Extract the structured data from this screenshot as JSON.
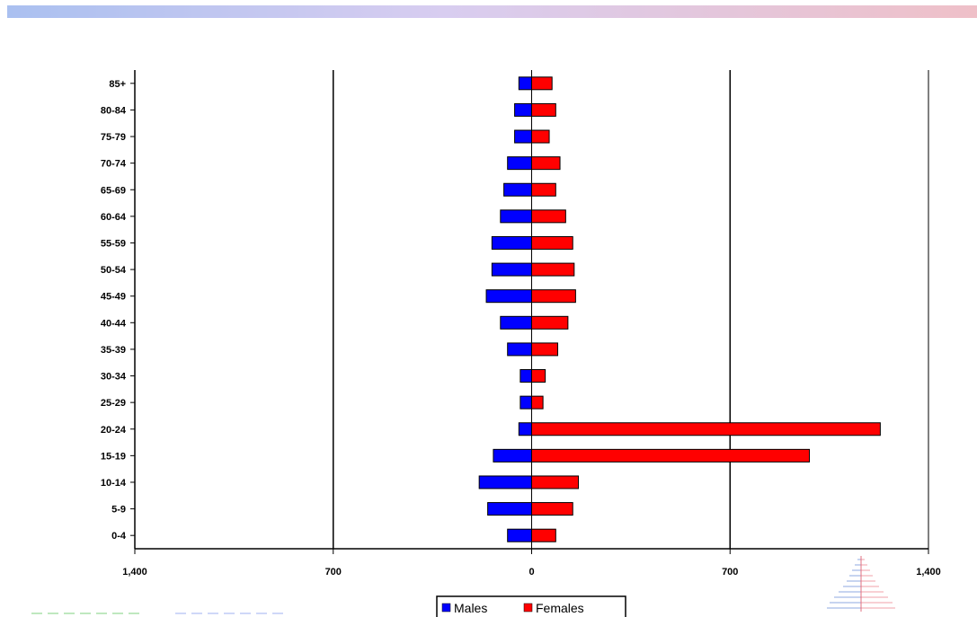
{
  "chart_data": {
    "type": "bar",
    "orientation": "horizontal",
    "style": "population-pyramid",
    "title": "",
    "xlabel": "",
    "ylabel": "",
    "categories": [
      "85+",
      "80-84",
      "75-79",
      "70-74",
      "65-69",
      "60-64",
      "55-59",
      "50-54",
      "45-49",
      "40-44",
      "35-39",
      "30-34",
      "25-29",
      "20-24",
      "15-19",
      "10-14",
      "5-9",
      "0-4"
    ],
    "series": [
      {
        "name": "Males",
        "color": "#0000ff",
        "values": [
          -45,
          -60,
          -60,
          -85,
          -98,
          -110,
          -140,
          -140,
          -160,
          -110,
          -85,
          -40,
          -40,
          -45,
          -135,
          -185,
          -155,
          -85
        ]
      },
      {
        "name": "Females",
        "color": "#ff0000",
        "values": [
          72,
          85,
          62,
          100,
          85,
          120,
          145,
          150,
          155,
          128,
          92,
          48,
          40,
          1230,
          980,
          165,
          145,
          85
        ]
      }
    ],
    "xlim": [
      -1400,
      1400
    ],
    "x_ticks": [
      -1400,
      -700,
      0,
      700,
      1400
    ],
    "x_tick_labels": [
      "1,400",
      "700",
      "0",
      "700",
      "1,400"
    ],
    "gridlines": [
      -700,
      700
    ],
    "legend_position": "bottom"
  },
  "colors": {
    "male": "#0000ff",
    "female": "#ff0000",
    "bar_outline": "#000000"
  }
}
